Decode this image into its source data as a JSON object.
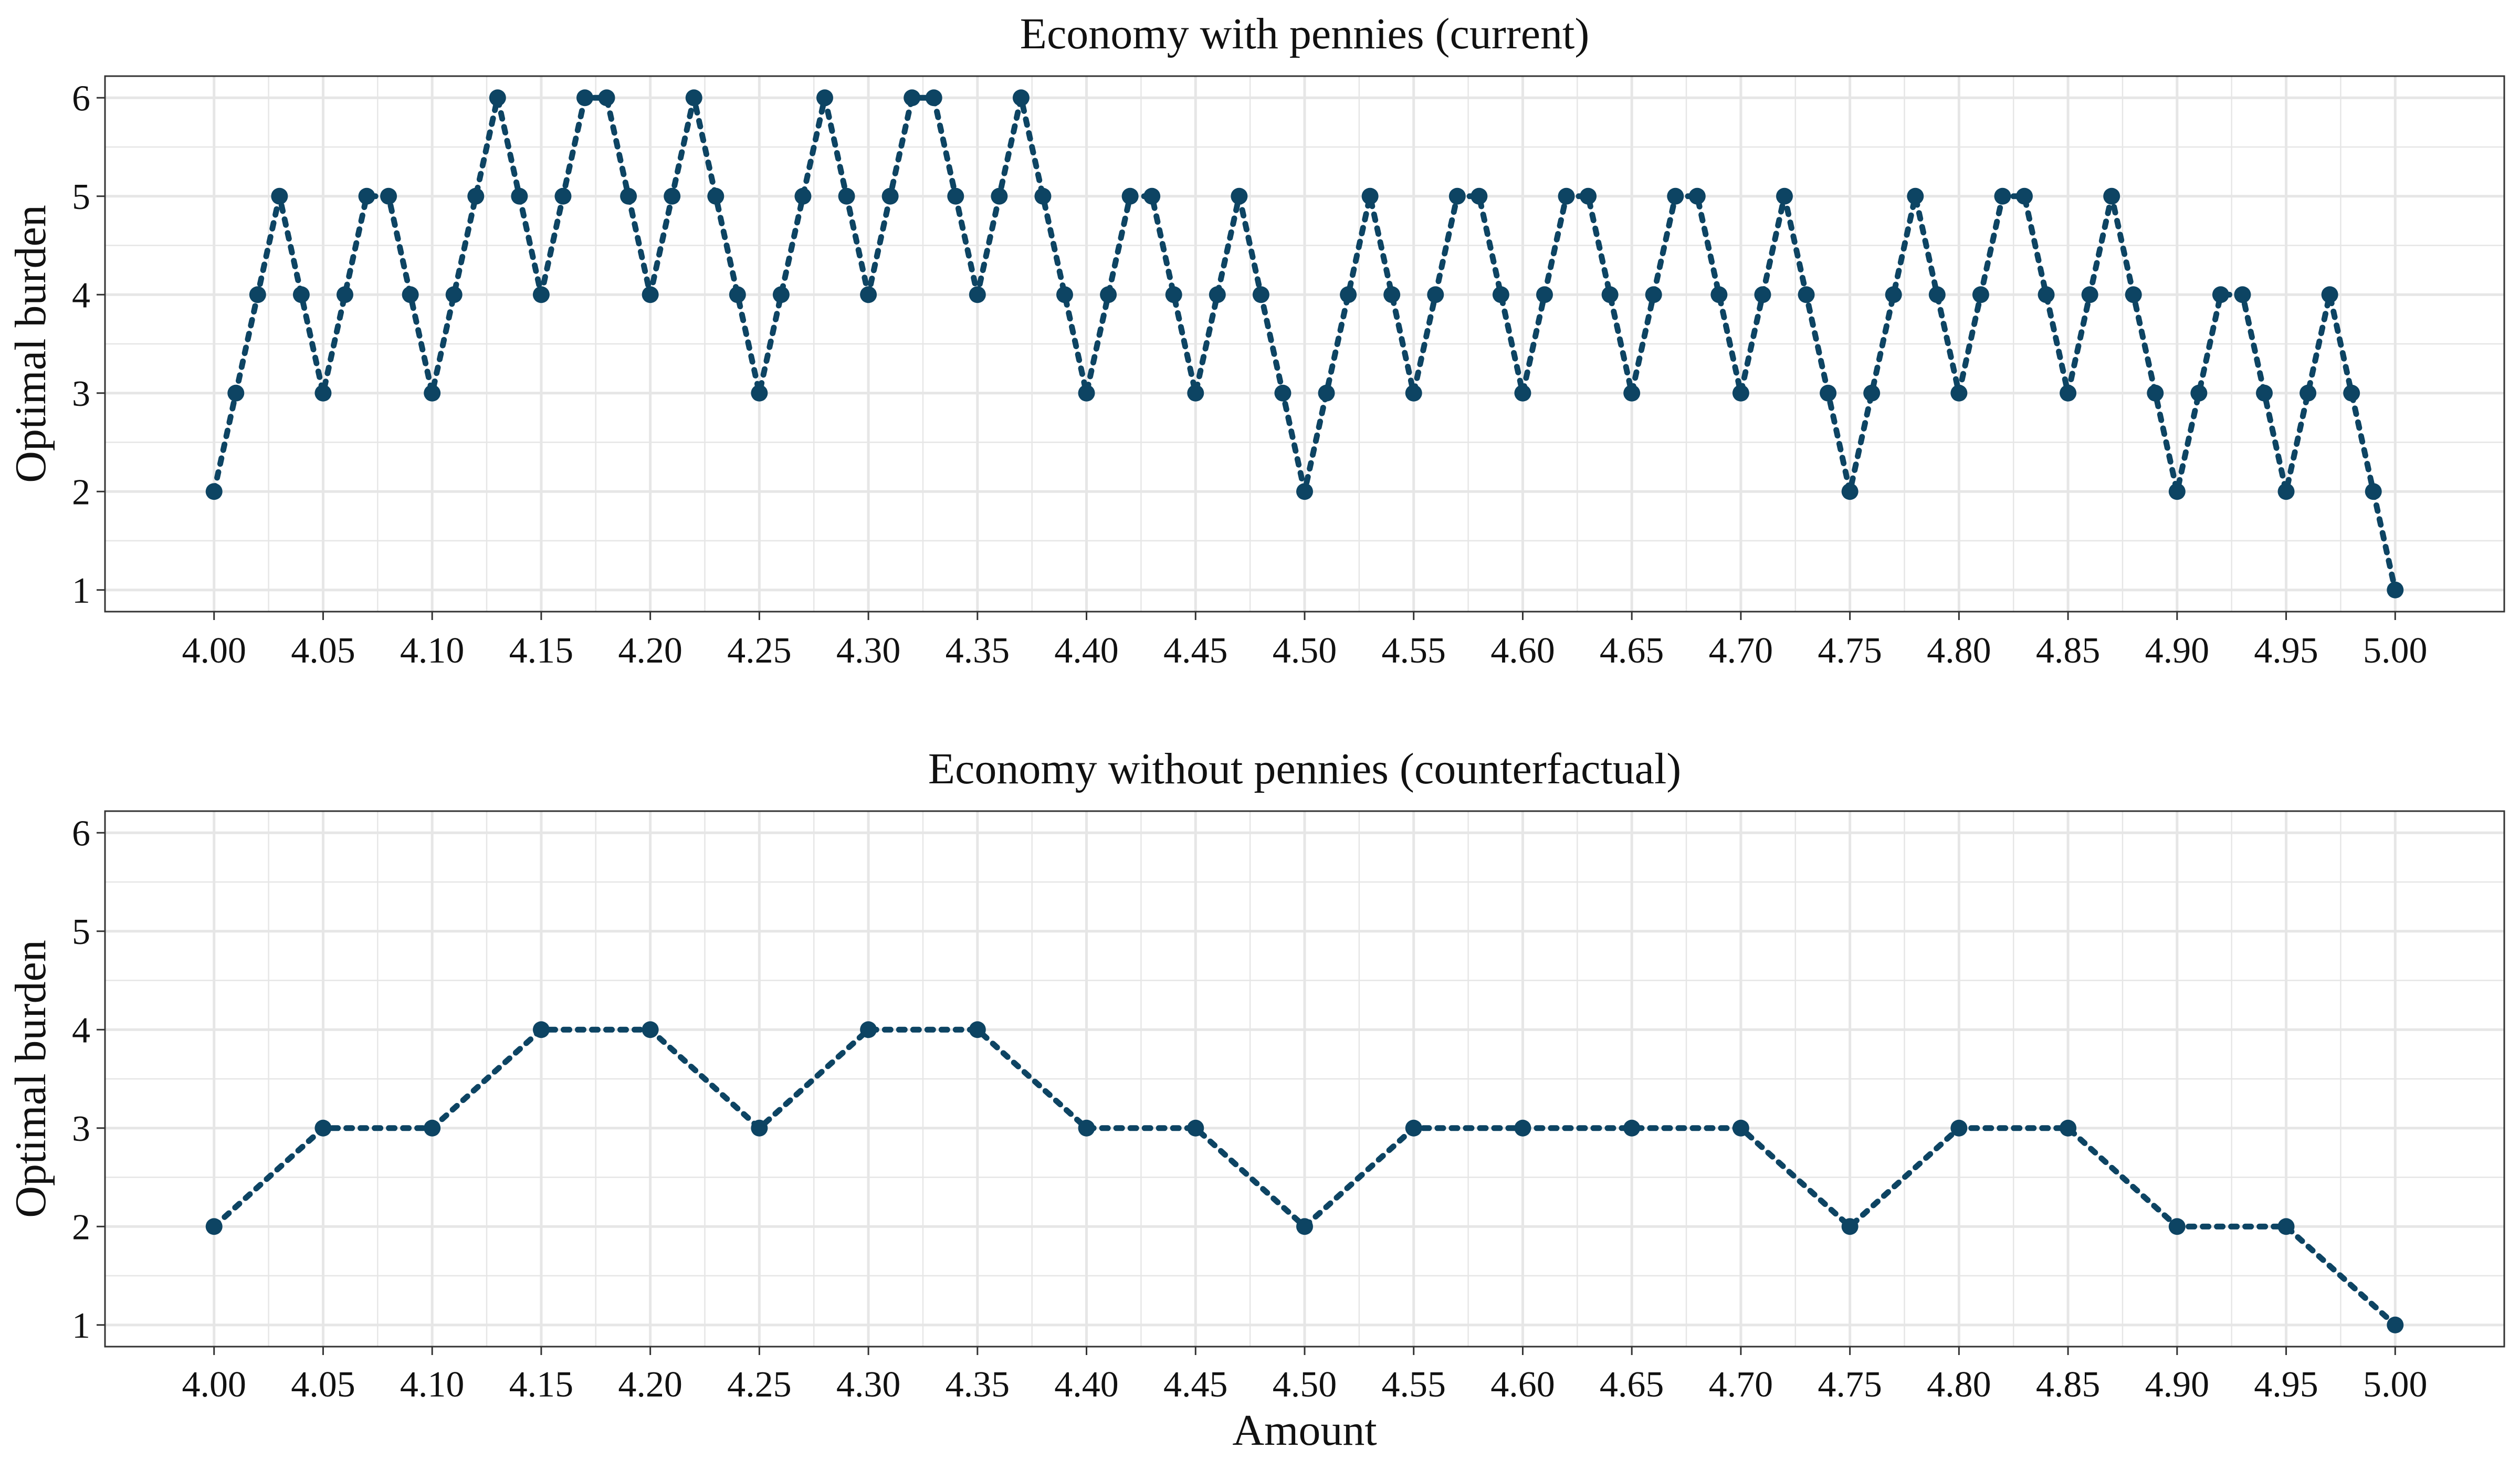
{
  "chart_data": [
    {
      "type": "line",
      "title": "Economy with pennies (current)",
      "xlabel": "",
      "ylabel": "Optimal burden",
      "xlim": [
        3.95,
        5.05
      ],
      "ylim": [
        0.78,
        6.22
      ],
      "xticks": [
        "4.00",
        "4.05",
        "4.10",
        "4.15",
        "4.20",
        "4.25",
        "4.30",
        "4.35",
        "4.40",
        "4.45",
        "4.50",
        "4.55",
        "4.60",
        "4.65",
        "4.70",
        "4.75",
        "4.80",
        "4.85",
        "4.90",
        "4.95",
        "5.00"
      ],
      "yticks": [
        "1",
        "2",
        "3",
        "4",
        "5",
        "6"
      ],
      "grid": true,
      "legend": "none",
      "series": [
        {
          "x_start": 4.0,
          "x_step": 0.01,
          "values": [
            2,
            3,
            4,
            5,
            4,
            3,
            4,
            5,
            5,
            4,
            3,
            4,
            5,
            6,
            5,
            4,
            5,
            6,
            6,
            5,
            4,
            5,
            6,
            5,
            4,
            3,
            4,
            5,
            6,
            5,
            4,
            5,
            6,
            6,
            5,
            4,
            5,
            6,
            5,
            4,
            3,
            4,
            5,
            5,
            4,
            3,
            4,
            5,
            4,
            3,
            2,
            3,
            4,
            5,
            4,
            3,
            4,
            5,
            5,
            4,
            3,
            4,
            5,
            5,
            4,
            3,
            4,
            5,
            5,
            4,
            3,
            4,
            5,
            4,
            3,
            2,
            3,
            4,
            5,
            4,
            3,
            4,
            5,
            5,
            4,
            3,
            4,
            5,
            4,
            3,
            2,
            3,
            4,
            4,
            3,
            2,
            3,
            4,
            3,
            2,
            1
          ]
        }
      ]
    },
    {
      "type": "line",
      "title": "Economy without pennies (counterfactual)",
      "xlabel": "Amount",
      "ylabel": "Optimal burden",
      "xlim": [
        3.95,
        5.05
      ],
      "ylim": [
        0.78,
        6.22
      ],
      "xticks": [
        "4.00",
        "4.05",
        "4.10",
        "4.15",
        "4.20",
        "4.25",
        "4.30",
        "4.35",
        "4.40",
        "4.45",
        "4.50",
        "4.55",
        "4.60",
        "4.65",
        "4.70",
        "4.75",
        "4.80",
        "4.85",
        "4.90",
        "4.95",
        "5.00"
      ],
      "yticks": [
        "1",
        "2",
        "3",
        "4",
        "5",
        "6"
      ],
      "grid": true,
      "legend": "none",
      "series": [
        {
          "x_start": 4.0,
          "x_step": 0.05,
          "values": [
            2,
            3,
            3,
            4,
            4,
            3,
            4,
            4,
            3,
            3,
            2,
            3,
            3,
            3,
            3,
            2,
            3,
            3,
            2,
            2,
            1
          ]
        }
      ]
    }
  ],
  "colors": {
    "series": "#0d4463",
    "grid": "#e6e6e6",
    "frame": "#333333",
    "text": "#111111"
  }
}
